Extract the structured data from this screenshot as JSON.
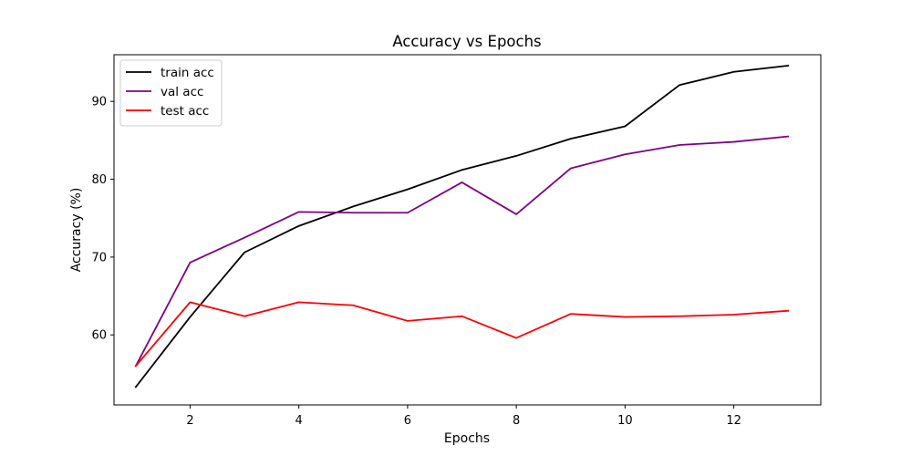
{
  "chart_data": {
    "type": "line",
    "title": "Accuracy vs Epochs",
    "xlabel": "Epochs",
    "ylabel": "Accuracy (%)",
    "x": [
      1,
      2,
      3,
      4,
      5,
      6,
      7,
      8,
      9,
      10,
      11,
      12,
      13
    ],
    "xlim": [
      0.6,
      13.6
    ],
    "ylim": [
      51.0,
      96.0
    ],
    "xticks": [
      2,
      4,
      6,
      8,
      10,
      12
    ],
    "yticks": [
      60,
      70,
      80,
      90
    ],
    "grid": false,
    "legend_position": "upper-left",
    "series": [
      {
        "name": "train acc",
        "color": "#000000",
        "values": [
          53.3,
          62.3,
          70.6,
          74.0,
          76.5,
          78.7,
          81.2,
          83.0,
          85.2,
          86.8,
          92.1,
          93.8,
          94.6
        ]
      },
      {
        "name": "val acc",
        "color": "#800080",
        "values": [
          56.0,
          69.3,
          72.5,
          75.8,
          75.7,
          75.7,
          79.6,
          75.5,
          81.4,
          83.2,
          84.4,
          84.8,
          85.5
        ]
      },
      {
        "name": "test acc",
        "color": "#ff0000",
        "values": [
          56.0,
          64.2,
          62.4,
          64.2,
          63.8,
          61.8,
          62.4,
          59.6,
          62.7,
          62.3,
          62.4,
          62.6,
          63.1
        ]
      }
    ]
  }
}
